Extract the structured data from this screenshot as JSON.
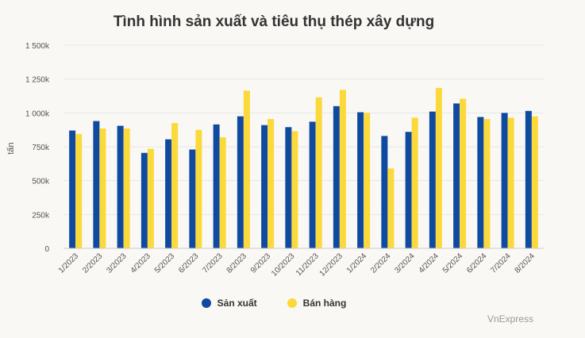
{
  "chart_data": {
    "type": "bar",
    "title": "Tình hình sản xuất và tiêu thụ thép xây dựng",
    "xlabel": "",
    "ylabel": "tấn",
    "ylim": [
      0,
      1500
    ],
    "yticks": [
      0,
      250,
      500,
      750,
      1000,
      1250,
      1500
    ],
    "ytick_labels": [
      "0",
      "250k",
      "500k",
      "750k",
      "1 000k",
      "1 250k",
      "1 500k"
    ],
    "categories": [
      "1/2023",
      "2/2023",
      "3/2023",
      "4/2023",
      "5/2023",
      "6/2023",
      "7/2023",
      "8/2023",
      "9/2023",
      "10/2023",
      "11/2023",
      "12/2023",
      "1/2024",
      "2/2024",
      "3/2024",
      "4/2024",
      "5/2024",
      "6/2024",
      "7/2024",
      "8/2024"
    ],
    "series": [
      {
        "name": "Sản xuất",
        "color": "#0f4aa0",
        "values": [
          870,
          940,
          905,
          705,
          805,
          730,
          915,
          975,
          910,
          895,
          935,
          1050,
          1005,
          830,
          860,
          1010,
          1070,
          970,
          1000,
          1015
        ]
      },
      {
        "name": "Bán hàng",
        "color": "#fbd93a",
        "values": [
          845,
          885,
          885,
          735,
          925,
          875,
          820,
          1165,
          955,
          865,
          1115,
          1170,
          1000,
          590,
          965,
          1185,
          1105,
          955,
          965,
          975
        ]
      }
    ],
    "grid": true,
    "legend_position": "bottom"
  },
  "credit": "VnExpress"
}
